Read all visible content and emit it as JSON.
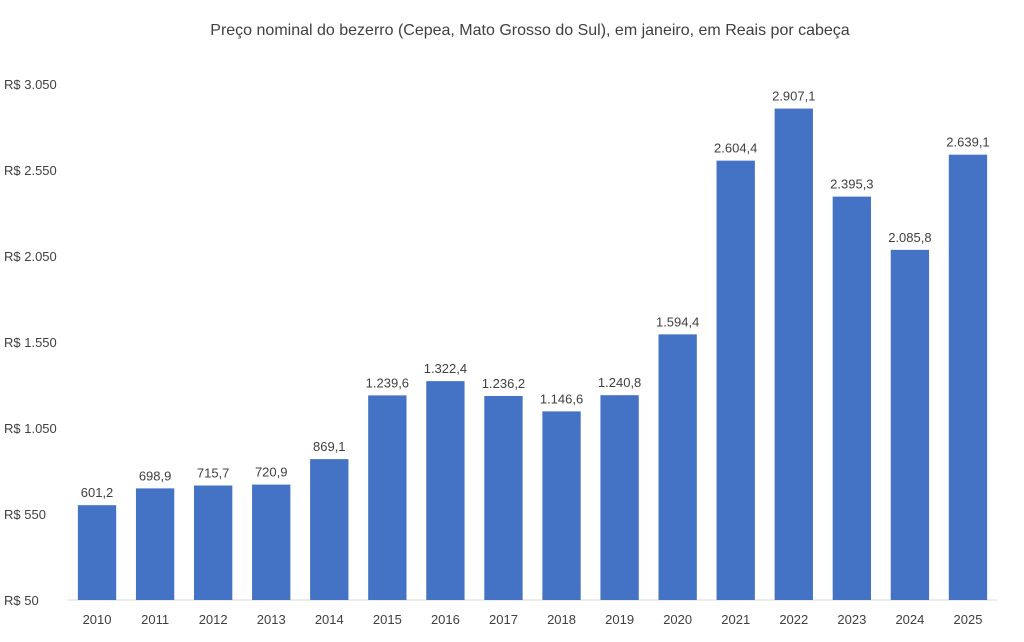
{
  "chart_data": {
    "type": "bar",
    "title": "Preço nominal do bezerro (Cepea, Mato Grosso do Sul), em janeiro, em Reais por cabeça",
    "xlabel": "",
    "ylabel": "",
    "categories": [
      "2010",
      "2011",
      "2012",
      "2013",
      "2014",
      "2015",
      "2016",
      "2017",
      "2018",
      "2019",
      "2020",
      "2021",
      "2022",
      "2023",
      "2024",
      "2025"
    ],
    "values": [
      601.2,
      698.9,
      715.7,
      720.9,
      869.1,
      1239.6,
      1322.4,
      1236.2,
      1146.6,
      1240.8,
      1594.4,
      2604.4,
      2907.1,
      2395.3,
      2085.8,
      2639.1
    ],
    "value_labels": [
      "601,2",
      "698,9",
      "715,7",
      "720,9",
      "869,1",
      "1.239,6",
      "1.322,4",
      "1.236,2",
      "1.146,6",
      "1.240,8",
      "1.594,4",
      "2.604,4",
      "2.907,1",
      "2.395,3",
      "2.085,8",
      "2.639,1"
    ],
    "y_ticks": [
      50,
      550,
      1050,
      1550,
      2050,
      2550,
      3050
    ],
    "y_tick_labels": [
      "R$ 50",
      "R$ 550",
      "R$ 1.050",
      "R$ 1.550",
      "R$ 2.050",
      "R$ 2.550",
      "R$ 3.050"
    ],
    "ylim": [
      50,
      3050
    ],
    "grid": false,
    "legend": "none",
    "bar_color": "#4472C4",
    "text_color": "#404040",
    "axis_color": "#D9D9D9"
  }
}
